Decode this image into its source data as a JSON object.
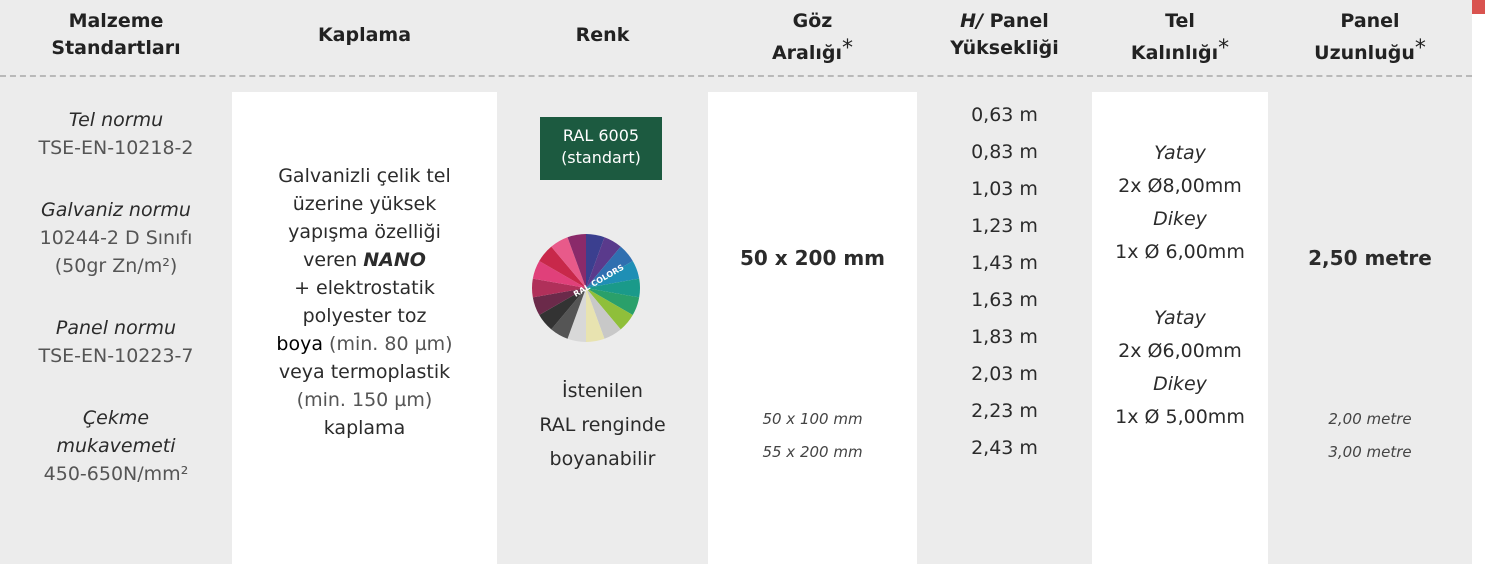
{
  "headers": [
    {
      "lines": [
        "Malzeme",
        "Standartları"
      ]
    },
    {
      "lines": [
        "Kaplama"
      ]
    },
    {
      "lines": [
        "Renk"
      ]
    },
    {
      "lines": [
        "Göz",
        "Aralığı"
      ],
      "mark": "*"
    },
    {
      "lines": [
        "Panel",
        "Yüksekliği"
      ],
      "prefix": "H/"
    },
    {
      "lines": [
        "Tel",
        "Kalınlığı"
      ],
      "mark": "*"
    },
    {
      "lines": [
        "Panel",
        "Uzunluğu"
      ],
      "mark": "*"
    }
  ],
  "standards": [
    {
      "label": [
        "Tel normu"
      ],
      "values": [
        "TSE-EN-10218-2"
      ]
    },
    {
      "label": [
        "Galvaniz normu"
      ],
      "values": [
        "10244-2 D Sınıfı",
        "(50gr Zn/m²)"
      ]
    },
    {
      "label": [
        "Panel normu"
      ],
      "values": [
        "TSE-EN-10223-7"
      ]
    },
    {
      "label": [
        "Çekme",
        "mukavemeti"
      ],
      "values": [
        "450-650N/mm²"
      ]
    }
  ],
  "coating": {
    "lines_before": [
      "Galvanizli çelik tel",
      "üzerine yüksek",
      "yapışma özelliği"
    ],
    "veren": "veren",
    "nano": "NANO",
    "lines_mid": [
      "+ elektrostatik",
      "polyester toz"
    ],
    "boya": "boya",
    "boya_rest": "(min. 80 µm)",
    "lines_after": [
      "veya termoplastik",
      "(min. 150 µm)",
      "kaplama"
    ]
  },
  "color": {
    "badge": [
      "RAL 6005",
      "(standart)"
    ],
    "swatch_label": "RAL COLORS",
    "note": [
      "İstenilen",
      "RAL renginde",
      "boyanabilir"
    ]
  },
  "mesh": {
    "main": "50 x 200 mm",
    "alternatives": [
      "50 x 100 mm",
      "55 x 200 mm"
    ]
  },
  "heights": [
    "0,63 m",
    "0,83 m",
    "1,03 m",
    "1,23 m",
    "1,43 m",
    "1,63 m",
    "1,83 m",
    "2,03 m",
    "2,23 m",
    "2,43 m"
  ],
  "wire": [
    {
      "h_label": "Yatay",
      "h": "2x Ø8,00mm",
      "v_label": "Dikey",
      "v": "1x Ø 6,00mm"
    },
    {
      "h_label": "Yatay",
      "h": "2x Ø6,00mm",
      "v_label": "Dikey",
      "v": "1x Ø 5,00mm"
    }
  ],
  "length": {
    "main": "2,50 metre",
    "alternatives": [
      "2,00 metre",
      "3,00 metre"
    ]
  }
}
